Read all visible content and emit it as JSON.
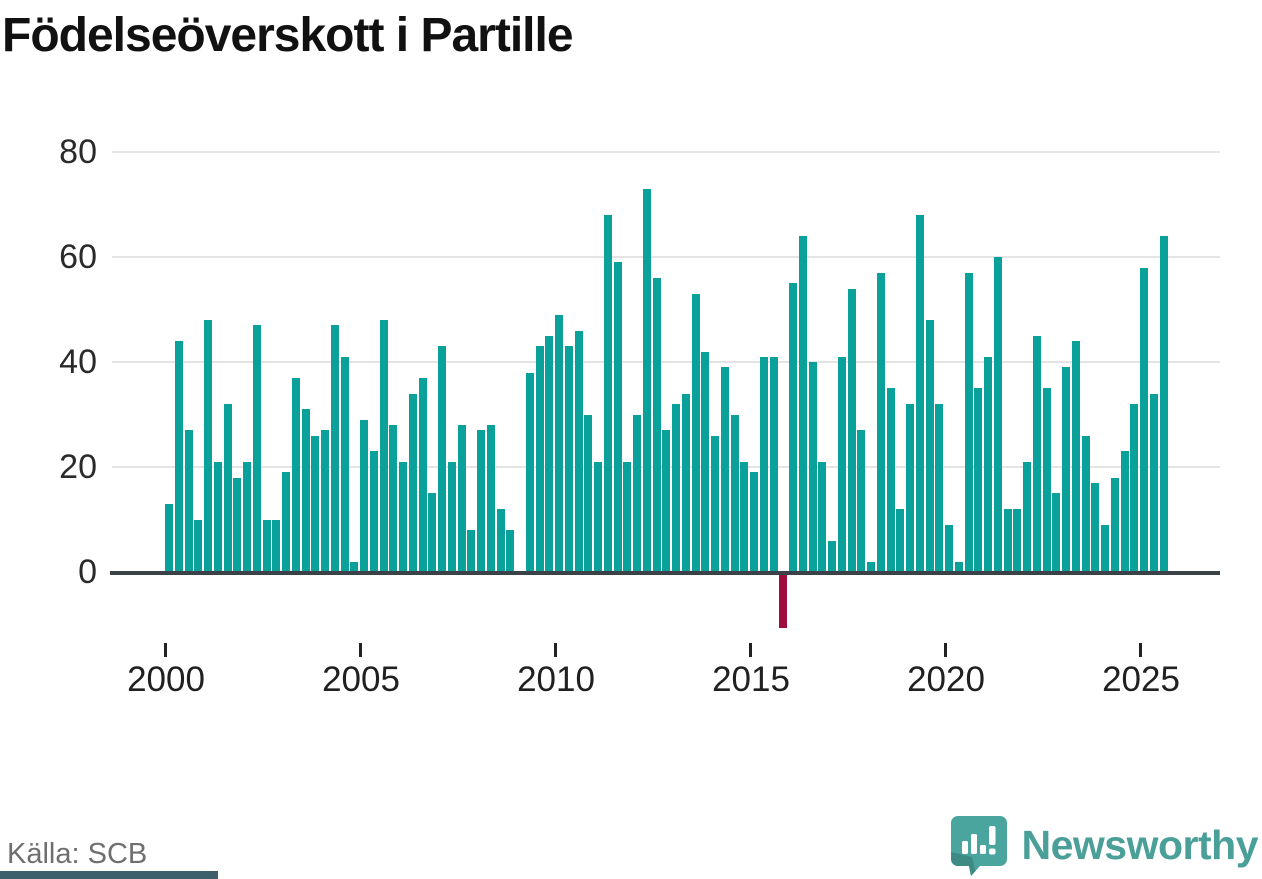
{
  "title": "Födelseöverskott i Partille",
  "source": "Källa: SCB",
  "branding": {
    "name": "Newsworthy",
    "logo": "speech-bubble-bar-chart-icon"
  },
  "colors": {
    "bar": "#0aa19a",
    "negative_bar": "#9e0c40",
    "grid": "#e4e4e4",
    "axis": "#3a4147",
    "title": "#111111",
    "tick_label": "#202020",
    "y_label": "#2a2a2a",
    "source_text": "#6f6f6f",
    "brand": "#4a9f99",
    "footer_strip": "#3d5f6b"
  },
  "chart_data": {
    "type": "bar",
    "title": "Födelseöverskott i Partille",
    "frequency": "quarterly",
    "x_start": {
      "year": 2000,
      "quarter": 1
    },
    "x_end": {
      "year": 2025,
      "quarter": 3
    },
    "values": [
      13,
      44,
      27,
      10,
      48,
      21,
      32,
      18,
      21,
      47,
      10,
      10,
      19,
      37,
      31,
      26,
      27,
      47,
      41,
      2,
      29,
      23,
      48,
      28,
      21,
      34,
      37,
      15,
      43,
      21,
      28,
      8,
      27,
      28,
      12,
      8,
      0,
      38,
      43,
      45,
      49,
      43,
      46,
      30,
      21,
      68,
      59,
      21,
      30,
      73,
      56,
      27,
      32,
      34,
      53,
      42,
      26,
      39,
      30,
      21,
      19,
      41,
      41,
      -10,
      55,
      64,
      40,
      21,
      6,
      41,
      54,
      27,
      2,
      57,
      35,
      12,
      32,
      68,
      48,
      32,
      9,
      2,
      57,
      35,
      41,
      60,
      12,
      12,
      21,
      45,
      35,
      15,
      39,
      44,
      26,
      17,
      9,
      18,
      23,
      32,
      58,
      34,
      64
    ],
    "x_tick_labels": [
      "2000",
      "2005",
      "2010",
      "2015",
      "2020",
      "2025"
    ],
    "x_tick_every_n_quarters": 20,
    "y_ticks": [
      0,
      20,
      40,
      60,
      80
    ],
    "ylim": [
      -12,
      85
    ],
    "grid": "horizontal",
    "legend": "none",
    "note": "negative values drawn in dark red"
  }
}
